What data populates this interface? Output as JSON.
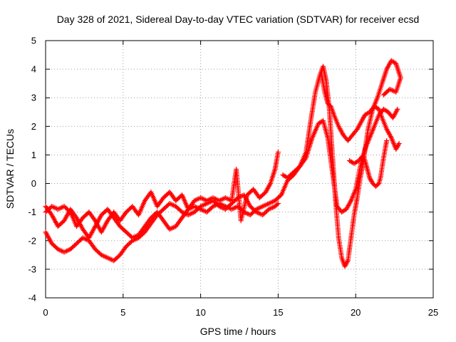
{
  "chart_data": {
    "type": "scatter",
    "title": "Day 328 of 2021, Sidereal Day-to-day VTEC variation (SDTVAR) for receiver ecsd",
    "xlabel": "GPS time / hours",
    "ylabel": "SDTVAR / TECUs",
    "xlim": [
      0,
      25
    ],
    "ylim": [
      -4,
      5
    ],
    "xticks": [
      "0",
      "5",
      "10",
      "15",
      "20",
      "25"
    ],
    "yticks": [
      "-4",
      "-3",
      "-2",
      "-1",
      "0",
      "1",
      "2",
      "3",
      "4",
      "5"
    ],
    "grid": true,
    "legend": "none",
    "marker": "+",
    "series_color": "#ff0000",
    "series": [
      {
        "values": [
          [
            0.0,
            -0.8
          ],
          [
            0.4,
            -1.1
          ],
          [
            0.8,
            -1.5
          ],
          [
            1.2,
            -1.3
          ],
          [
            1.6,
            -0.9
          ],
          [
            2.0,
            -1.2
          ],
          [
            2.4,
            -1.6
          ],
          [
            2.8,
            -1.9
          ],
          [
            3.2,
            -1.5
          ],
          [
            3.6,
            -1.1
          ],
          [
            4.0,
            -0.9
          ],
          [
            4.4,
            -1.2
          ],
          [
            4.8,
            -1.5
          ],
          [
            5.2,
            -1.7
          ],
          [
            5.6,
            -1.9
          ],
          [
            6.0,
            -1.8
          ],
          [
            6.4,
            -1.5
          ],
          [
            6.8,
            -1.2
          ],
          [
            7.2,
            -1.0
          ],
          [
            7.6,
            -1.3
          ],
          [
            8.0,
            -1.6
          ],
          [
            8.4,
            -1.5
          ],
          [
            8.8,
            -1.2
          ],
          [
            9.2,
            -0.9
          ],
          [
            9.6,
            -0.8
          ],
          [
            10.0,
            -0.9
          ],
          [
            10.4,
            -1.0
          ],
          [
            10.8,
            -0.8
          ],
          [
            11.2,
            -0.7
          ],
          [
            11.6,
            -0.8
          ],
          [
            12.0,
            -0.9
          ],
          [
            12.4,
            -0.8
          ],
          [
            12.8,
            -1.0
          ],
          [
            13.2,
            -1.1
          ],
          [
            13.6,
            -0.9
          ],
          [
            14.0,
            -0.8
          ],
          [
            14.4,
            -0.7
          ],
          [
            14.8,
            -0.6
          ],
          [
            15.2,
            -0.4
          ],
          [
            15.6,
            0.1
          ],
          [
            16.0,
            0.3
          ],
          [
            16.4,
            0.6
          ],
          [
            16.8,
            0.9
          ],
          [
            17.2,
            1.6
          ],
          [
            17.6,
            2.1
          ],
          [
            17.9,
            2.2
          ],
          [
            18.2,
            1.6
          ],
          [
            18.5,
            0.4
          ],
          [
            18.8,
            -0.8
          ],
          [
            19.1,
            -1.0
          ],
          [
            19.4,
            -0.9
          ],
          [
            19.7,
            -0.6
          ],
          [
            20.0,
            -0.2
          ],
          [
            20.3,
            0.6
          ],
          [
            20.6,
            1.2
          ],
          [
            20.9,
            1.6
          ],
          [
            21.2,
            2.0
          ],
          [
            21.5,
            2.4
          ],
          [
            21.8,
            2.6
          ],
          [
            22.1,
            2.5
          ],
          [
            22.4,
            2.3
          ],
          [
            22.7,
            2.6
          ]
        ]
      },
      {
        "values": [
          [
            0.0,
            -1.7
          ],
          [
            0.4,
            -2.1
          ],
          [
            0.8,
            -2.3
          ],
          [
            1.2,
            -2.4
          ],
          [
            1.6,
            -2.3
          ],
          [
            2.0,
            -2.1
          ],
          [
            2.4,
            -1.9
          ],
          [
            2.8,
            -2.0
          ],
          [
            3.2,
            -2.3
          ],
          [
            3.6,
            -2.5
          ],
          [
            4.0,
            -2.6
          ],
          [
            4.4,
            -2.7
          ],
          [
            4.8,
            -2.5
          ],
          [
            5.2,
            -2.2
          ],
          [
            5.6,
            -2.0
          ],
          [
            6.0,
            -1.9
          ],
          [
            6.4,
            -1.7
          ],
          [
            6.8,
            -1.4
          ],
          [
            7.2,
            -1.1
          ],
          [
            7.6,
            -0.9
          ],
          [
            8.0,
            -0.7
          ],
          [
            8.4,
            -0.8
          ],
          [
            8.8,
            -1.0
          ],
          [
            9.2,
            -1.1
          ],
          [
            9.6,
            -1.0
          ],
          [
            10.0,
            -0.8
          ],
          [
            10.4,
            -0.7
          ],
          [
            10.8,
            -0.6
          ],
          [
            11.2,
            -0.8
          ],
          [
            11.6,
            -0.9
          ],
          [
            12.0,
            -0.7
          ],
          [
            12.4,
            -0.5
          ],
          [
            12.8,
            -0.4
          ],
          [
            13.2,
            -0.8
          ],
          [
            13.6,
            -1.0
          ],
          [
            14.0,
            -1.1
          ],
          [
            14.4,
            -0.9
          ],
          [
            14.8,
            -0.8
          ],
          [
            15.0,
            -0.7
          ]
        ]
      },
      {
        "values": [
          [
            0.0,
            -1.0
          ],
          [
            0.4,
            -0.8
          ],
          [
            0.8,
            -0.9
          ],
          [
            1.2,
            -0.8
          ],
          [
            1.6,
            -1.0
          ],
          [
            2.0,
            -1.5
          ],
          [
            2.4,
            -1.2
          ],
          [
            2.8,
            -1.0
          ],
          [
            3.2,
            -1.3
          ],
          [
            3.6,
            -1.7
          ],
          [
            4.0,
            -1.3
          ],
          [
            4.4,
            -1.0
          ],
          [
            4.8,
            -1.3
          ],
          [
            5.2,
            -1.0
          ],
          [
            5.6,
            -0.8
          ],
          [
            6.0,
            -1.1
          ],
          [
            6.4,
            -0.6
          ],
          [
            6.8,
            -0.3
          ],
          [
            7.2,
            -0.8
          ],
          [
            7.6,
            -0.5
          ],
          [
            8.0,
            -0.3
          ],
          [
            8.4,
            -0.6
          ],
          [
            8.8,
            -0.4
          ],
          [
            9.2,
            -0.9
          ],
          [
            9.6,
            -0.6
          ],
          [
            10.0,
            -0.5
          ],
          [
            10.4,
            -0.6
          ],
          [
            10.8,
            -0.5
          ],
          [
            11.2,
            -0.6
          ],
          [
            11.6,
            -0.5
          ],
          [
            12.0,
            -0.6
          ],
          [
            12.3,
            0.5
          ],
          [
            12.6,
            -1.3
          ],
          [
            13.0,
            -0.4
          ],
          [
            13.4,
            -0.2
          ],
          [
            13.8,
            -0.5
          ],
          [
            14.2,
            -0.3
          ],
          [
            14.5,
            0.0
          ],
          [
            14.8,
            0.5
          ],
          [
            15.0,
            1.1
          ]
        ]
      },
      {
        "values": [
          [
            15.3,
            0.3
          ],
          [
            15.6,
            0.2
          ],
          [
            16.0,
            0.4
          ],
          [
            16.4,
            0.6
          ],
          [
            16.8,
            1.1
          ],
          [
            17.1,
            2.2
          ],
          [
            17.4,
            3.2
          ],
          [
            17.7,
            3.8
          ],
          [
            17.9,
            4.1
          ],
          [
            18.1,
            3.6
          ],
          [
            18.3,
            2.6
          ],
          [
            18.5,
            1.0
          ],
          [
            18.7,
            -0.6
          ],
          [
            18.9,
            -1.9
          ],
          [
            19.1,
            -2.6
          ],
          [
            19.3,
            -2.9
          ],
          [
            19.5,
            -2.7
          ],
          [
            19.7,
            -1.9
          ],
          [
            19.9,
            -1.1
          ],
          [
            20.1,
            -0.5
          ],
          [
            20.3,
            0.2
          ],
          [
            20.5,
            0.8
          ],
          [
            20.8,
            1.9
          ],
          [
            21.1,
            2.6
          ],
          [
            21.4,
            3.0
          ],
          [
            21.7,
            3.5
          ],
          [
            22.0,
            4.0
          ],
          [
            22.3,
            4.3
          ],
          [
            22.6,
            4.2
          ],
          [
            22.9,
            3.7
          ],
          [
            22.6,
            3.2
          ],
          [
            22.2,
            3.3
          ],
          [
            21.8,
            3.1
          ]
        ]
      },
      {
        "values": [
          [
            17.8,
            3.8
          ],
          [
            18.0,
            3.2
          ],
          [
            18.2,
            2.8
          ],
          [
            18.4,
            2.7
          ],
          [
            18.6,
            2.4
          ],
          [
            18.9,
            2.0
          ],
          [
            19.2,
            1.7
          ],
          [
            19.5,
            1.5
          ],
          [
            19.8,
            1.7
          ],
          [
            20.1,
            1.9
          ],
          [
            20.4,
            2.2
          ],
          [
            20.6,
            2.4
          ],
          [
            20.9,
            2.5
          ],
          [
            21.2,
            2.7
          ],
          [
            21.5,
            2.6
          ],
          [
            21.7,
            2.3
          ],
          [
            22.0,
            1.9
          ],
          [
            22.3,
            1.6
          ],
          [
            22.6,
            1.2
          ],
          [
            22.8,
            1.4
          ]
        ]
      },
      {
        "values": [
          [
            19.6,
            0.8
          ],
          [
            19.9,
            0.7
          ],
          [
            20.2,
            0.8
          ],
          [
            20.5,
            1.0
          ],
          [
            20.7,
            0.6
          ],
          [
            20.9,
            0.2
          ],
          [
            21.1,
            0.0
          ],
          [
            21.3,
            -0.1
          ],
          [
            21.5,
            0.0
          ],
          [
            21.6,
            0.2
          ],
          [
            21.8,
            0.9
          ],
          [
            22.0,
            1.5
          ]
        ]
      }
    ]
  }
}
